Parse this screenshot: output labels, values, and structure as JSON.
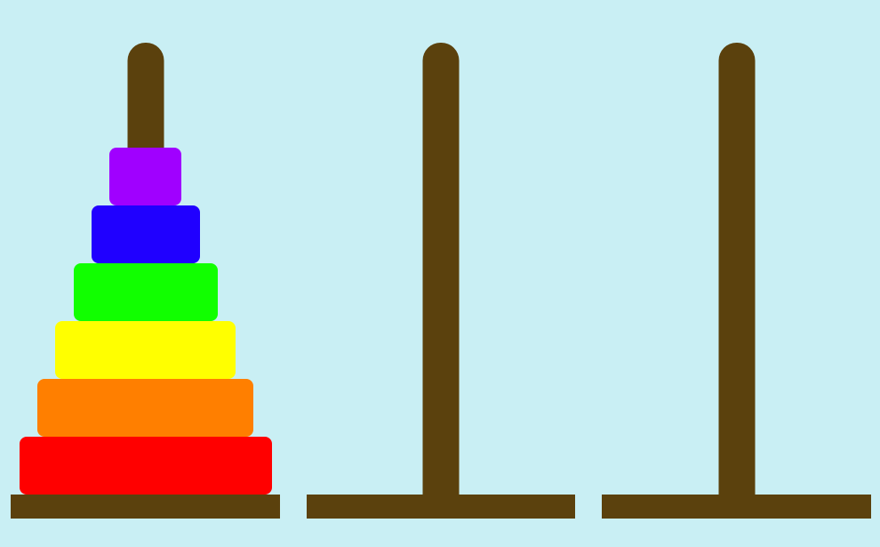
{
  "game": {
    "colors": {
      "background": "#c9eff4",
      "wood": "#5b410d"
    },
    "towers": [
      {
        "id": "left",
        "disks": [
          {
            "size": 6,
            "color": "#ff0000"
          },
          {
            "size": 5,
            "color": "#ff7f00"
          },
          {
            "size": 4,
            "color": "#ffff00"
          },
          {
            "size": 3,
            "color": "#11ff00"
          },
          {
            "size": 2,
            "color": "#2000ff"
          },
          {
            "size": 1,
            "color": "#a000ff"
          }
        ]
      },
      {
        "id": "middle",
        "disks": []
      },
      {
        "id": "right",
        "disks": []
      }
    ]
  }
}
